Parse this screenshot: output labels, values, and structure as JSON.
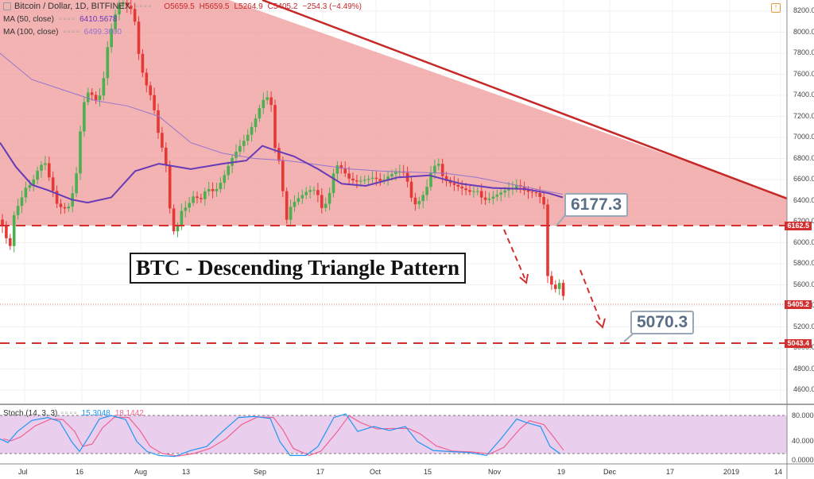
{
  "header": {
    "symbol": "Bitcoin / Dollar, 1D, BITFINEX",
    "open": "O5659.5",
    "high": "H5659.5",
    "low": "L5264.9",
    "close": "C5405.2",
    "change": "−254.3 (−4.49%)",
    "ma50_label": "MA (50, close)",
    "ma50_value": "6410.5678",
    "ma100_label": "MA (100, close)",
    "ma100_value": "6499.3600",
    "stoch_label": "Stoch (14, 3, 3)",
    "stoch_k": "15.3048",
    "stoch_d": "18.1442"
  },
  "annotations": {
    "pattern_title": "BTC - Descending Triangle Pattern",
    "callout_upper": "6177.3",
    "callout_lower": "5070.3"
  },
  "price_axis": {
    "ticks": [
      "8200.0000",
      "8000.0000",
      "7800.0000",
      "7600.0000",
      "7400.0000",
      "7200.0000",
      "7000.0000",
      "6800.0000",
      "6600.0000",
      "6400.0000",
      "6200.0000",
      "6000.0000",
      "5800.0000",
      "5600.0000",
      "5400.0000",
      "5200.0000",
      "5000.0000",
      "4800.0000",
      "4600.0000"
    ],
    "tag_support": "6162.5",
    "tag_last": "5405.2",
    "tag_target": "5043.4"
  },
  "stoch_axis": {
    "ticks": [
      "80.0000",
      "40.0000",
      "0.0000"
    ]
  },
  "time_axis": {
    "labels": [
      "Jul",
      "16",
      "Aug",
      "13",
      "Sep",
      "17",
      "Oct",
      "15",
      "Nov",
      "19",
      "Dec",
      "17",
      "2019",
      "14"
    ]
  },
  "colors": {
    "triangle_fill": "#ef9a9a",
    "resistance_line": "#c62828",
    "support_dash": "#d32f2f",
    "candle_up": "#4caf50",
    "candle_down": "#e53935",
    "ma50": "#673ab7",
    "ma100": "#9575cd",
    "stoch_band": "#e1bee7",
    "stoch_k_line": "#2196f3",
    "stoch_d_line": "#f06292"
  },
  "chart_data": {
    "type": "candlestick",
    "title": "Bitcoin / Dollar, 1D, BITFINEX",
    "ylim": [
      4500,
      8300
    ],
    "support_level": 6162.5,
    "target_level": 5043.4,
    "last_price": 5405.2,
    "ohlc_last": {
      "open": 5659.5,
      "high": 5659.5,
      "low": 5264.9,
      "close": 5405.2
    },
    "ma50_last": 6410.5678,
    "ma100_last": 6499.36,
    "stoch": {
      "k": 15.3048,
      "d": 18.1442,
      "upper": 80,
      "lower": 20
    }
  }
}
